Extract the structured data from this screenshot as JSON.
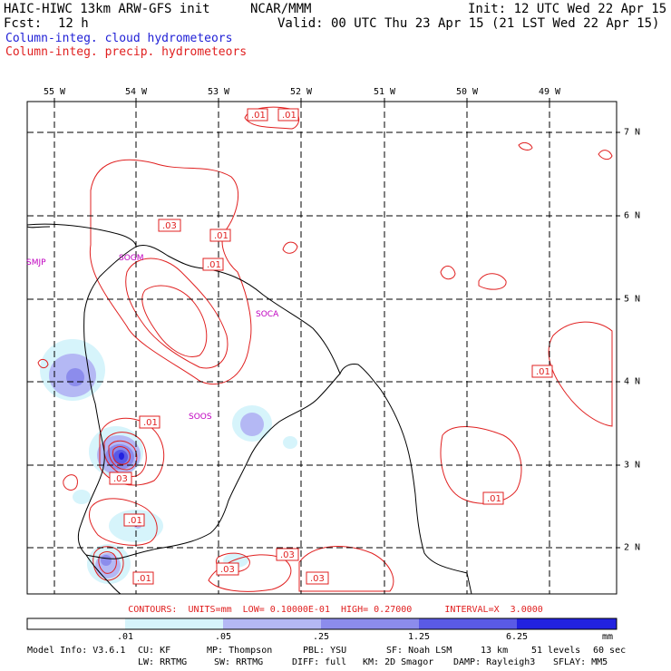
{
  "header": {
    "model_title": "HAIC-HIWC 13km ARW-GFS init",
    "org": "NCAR/MMM",
    "init": "Init: 12 UTC Wed 22 Apr 15",
    "fcst_label": "Fcst:",
    "fcst_value": "12 h",
    "valid": "Valid: 00 UTC Thu 23 Apr 15 (21 LST Wed 22 Apr 15)",
    "cloud_field": "Column-integ. cloud hydrometeors",
    "precip_field": "Column-integ. precip. hydrometeors"
  },
  "colors": {
    "cloud": "#1f1fd6",
    "precip": "#e02020",
    "station": "#c000c0"
  },
  "map": {
    "longitude_labels": [
      "55 W",
      "54 W",
      "53 W",
      "52 W",
      "51 W",
      "50 W",
      "49 W"
    ],
    "latitude_labels": [
      "7 N",
      "6 N",
      "5 N",
      "4 N",
      "3 N",
      "2 N"
    ],
    "stations": [
      "SMJP",
      "SOGM",
      "SOCA",
      "SOOS"
    ],
    "contour_labels": [
      ".01",
      ".01",
      ".03",
      ".01",
      ".01",
      ".01",
      ".01",
      ".03",
      ".01",
      ".01",
      ".03",
      ".01",
      ".03",
      ".03"
    ],
    "contours_line": "CONTOURS:  UNITS=mm  LOW= 0.10000E-01  HIGH= 0.27000      INTERVAL=X  3.0000"
  },
  "colorbar": {
    "labels": [
      ".01",
      ".05",
      ".25",
      "1.25",
      "6.25"
    ],
    "unit": "mm",
    "colors": [
      "#ffffff",
      "#d6f4fb",
      "#b4b8f4",
      "#8c8cec",
      "#5a5ae6",
      "#2222e0"
    ]
  },
  "footer": {
    "line1": [
      "Model Info: V3.6.1",
      "CU: KF",
      "MP: Thompson",
      "PBL: YSU",
      "SF: Noah LSM",
      "13 km",
      "51 levels",
      "60 sec"
    ],
    "line2": [
      "LW: RRTMG",
      "SW: RRTMG",
      "DIFF: full",
      "KM: 2D Smagor",
      "DAMP: Rayleigh3",
      "SFLAY: MM5"
    ]
  }
}
